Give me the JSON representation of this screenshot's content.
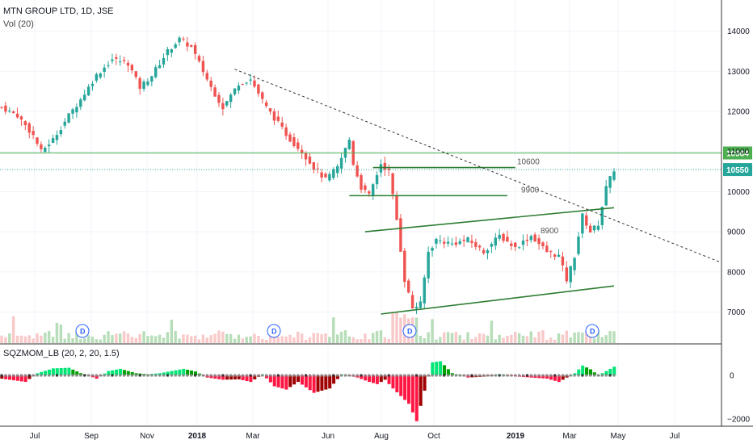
{
  "header": {
    "symbol_line": "MTN GROUP LTD, 1D, JSE",
    "volume_label": "Vol (20)",
    "indicator_label": "SQZMOM_LB (20, 2, 20, 1.5)"
  },
  "colors": {
    "up": "#26a69a",
    "down": "#ef5350",
    "trendline": "#2e7d32",
    "hline": "#4caf50",
    "dashed": "#333333",
    "mom_up_strong": "#00e676",
    "mom_up_weak": "#00a000",
    "mom_dn_strong": "#ff1744",
    "mom_dn_weak": "#a00000",
    "marker": "#2962ff"
  },
  "chart_data": {
    "type": "candlestick",
    "price_axis": {
      "ticks": [
        7000,
        8000,
        9000,
        10000,
        11000,
        12000,
        13000,
        14000
      ],
      "range": [
        6500,
        14500
      ]
    },
    "price_tags": [
      {
        "value": 10964,
        "label": "10964",
        "color": "#4caf50"
      },
      {
        "value": 10550,
        "label": "10550",
        "color": "#26a69a"
      }
    ],
    "horizontal_lines": [
      10964,
      10550
    ],
    "date_labels": [
      "Jul",
      "Sep",
      "Nov",
      "2018",
      "Mar",
      "Jun",
      "Aug",
      "Oct",
      "2019",
      "Mar",
      "May",
      "Jul"
    ],
    "annotations": [
      {
        "text": "10600",
        "value": 10600
      },
      {
        "text": "9900",
        "value": 9900
      },
      {
        "text": "8900",
        "value": 8900
      }
    ],
    "dividend_marker": "D",
    "dividend_count": 4,
    "price_path": [
      [
        0,
        12100
      ],
      [
        4,
        11900
      ],
      [
        8,
        11400
      ],
      [
        10,
        11000
      ],
      [
        13,
        11300
      ],
      [
        17,
        11900
      ],
      [
        20,
        12300
      ],
      [
        24,
        12900
      ],
      [
        28,
        13300
      ],
      [
        32,
        13200
      ],
      [
        35,
        12600
      ],
      [
        38,
        12900
      ],
      [
        42,
        13500
      ],
      [
        45,
        13800
      ],
      [
        48,
        13600
      ],
      [
        50,
        13200
      ],
      [
        53,
        12600
      ],
      [
        56,
        12100
      ],
      [
        60,
        12700
      ],
      [
        63,
        12800
      ],
      [
        67,
        12100
      ],
      [
        70,
        11700
      ],
      [
        73,
        11300
      ],
      [
        76,
        11000
      ],
      [
        79,
        10600
      ],
      [
        82,
        10300
      ],
      [
        85,
        10600
      ],
      [
        88,
        11300
      ],
      [
        89,
        10700
      ],
      [
        91,
        10100
      ],
      [
        93,
        9900
      ],
      [
        96,
        10700
      ],
      [
        98,
        10500
      ],
      [
        100,
        9300
      ],
      [
        102,
        7800
      ],
      [
        104,
        7100
      ],
      [
        106,
        7200
      ],
      [
        108,
        8500
      ],
      [
        110,
        8800
      ],
      [
        114,
        8700
      ],
      [
        118,
        8800
      ],
      [
        122,
        8500
      ],
      [
        126,
        8900
      ],
      [
        130,
        8600
      ],
      [
        134,
        8900
      ],
      [
        138,
        8500
      ],
      [
        141,
        8400
      ],
      [
        143,
        7800
      ],
      [
        145,
        8400
      ],
      [
        147,
        9400
      ],
      [
        149,
        9000
      ],
      [
        151,
        9200
      ],
      [
        153,
        10100
      ],
      [
        155,
        10550
      ]
    ],
    "momentum_axis": {
      "ticks": [
        0,
        -2000
      ],
      "range": [
        -2400,
        700
      ]
    },
    "momentum_path": [
      [
        0,
        -150
      ],
      [
        6,
        -300
      ],
      [
        9,
        100
      ],
      [
        13,
        320
      ],
      [
        17,
        350
      ],
      [
        20,
        100
      ],
      [
        24,
        -150
      ],
      [
        27,
        200
      ],
      [
        30,
        300
      ],
      [
        34,
        100
      ],
      [
        37,
        50
      ],
      [
        40,
        100
      ],
      [
        43,
        200
      ],
      [
        46,
        300
      ],
      [
        49,
        180
      ],
      [
        52,
        -100
      ],
      [
        56,
        -200
      ],
      [
        60,
        -180
      ],
      [
        63,
        -300
      ],
      [
        66,
        50
      ],
      [
        69,
        -500
      ],
      [
        72,
        -650
      ],
      [
        75,
        -300
      ],
      [
        79,
        -800
      ],
      [
        83,
        -600
      ],
      [
        86,
        50
      ],
      [
        90,
        -100
      ],
      [
        93,
        -300
      ],
      [
        95,
        -400
      ],
      [
        97,
        -200
      ],
      [
        99,
        -600
      ],
      [
        103,
        -1300
      ],
      [
        105,
        -2100
      ],
      [
        107,
        -700
      ],
      [
        109,
        600
      ],
      [
        111,
        650
      ],
      [
        114,
        100
      ],
      [
        118,
        -100
      ],
      [
        122,
        -60
      ],
      [
        126,
        40
      ],
      [
        130,
        -50
      ],
      [
        134,
        -100
      ],
      [
        138,
        -150
      ],
      [
        141,
        -300
      ],
      [
        143,
        -100
      ],
      [
        145,
        100
      ],
      [
        147,
        450
      ],
      [
        149,
        280
      ],
      [
        151,
        0
      ],
      [
        153,
        200
      ],
      [
        155,
        400
      ]
    ]
  }
}
